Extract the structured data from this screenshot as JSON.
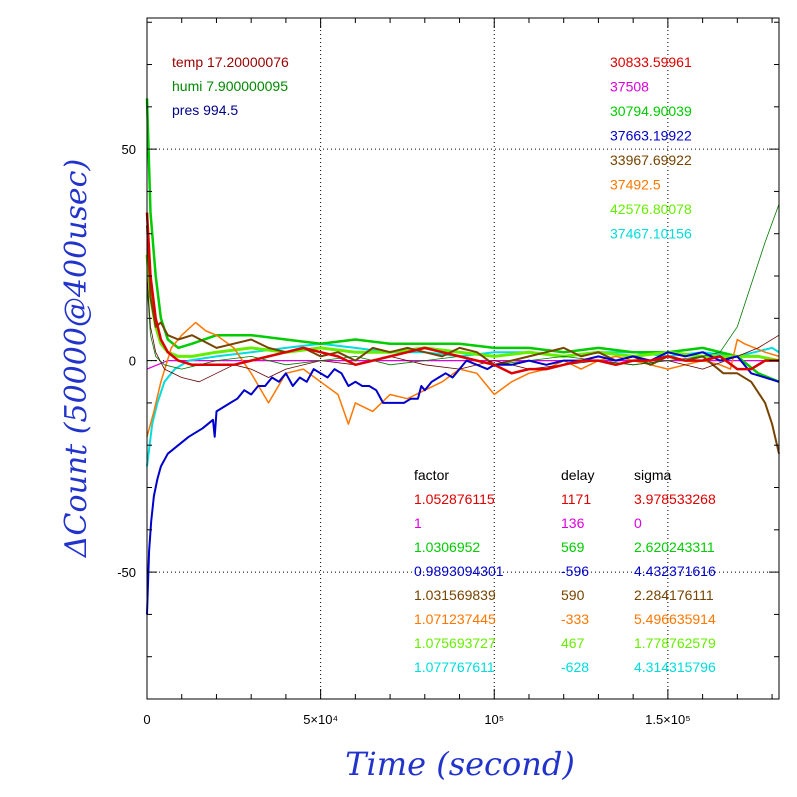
{
  "chart_data": {
    "type": "line",
    "xlabel": "Time (second)",
    "ylabel": "ΔCount (50000@400usec)",
    "xlim": [
      0,
      182000
    ],
    "ylim": [
      -80,
      81
    ],
    "xticks": [
      {
        "value": 0,
        "label": "0"
      },
      {
        "value": 50000,
        "label": "5×10⁴"
      },
      {
        "value": 100000,
        "label": "10⁵"
      },
      {
        "value": 150000,
        "label": "1.5×10⁵"
      }
    ],
    "yticks": [
      {
        "value": -50,
        "label": "-50"
      },
      {
        "value": 0,
        "label": "0"
      },
      {
        "value": 50,
        "label": "50"
      }
    ],
    "grid": true,
    "env": [
      {
        "text": "temp 17.20000076",
        "color": "#990000"
      },
      {
        "text": "humi 7.900000095",
        "color": "#008800"
      },
      {
        "text": "pres 994.5",
        "color": "#000088"
      }
    ],
    "means": [
      {
        "text": "30833.59961",
        "color": "#dd0000"
      },
      {
        "text": "37508",
        "color": "#dd00dd"
      },
      {
        "text": "30794.90039",
        "color": "#00cc00"
      },
      {
        "text": "37663.19922",
        "color": "#0000cc"
      },
      {
        "text": "33967.69922",
        "color": "#774400"
      },
      {
        "text": "37492.5",
        "color": "#ff7700"
      },
      {
        "text": "42576.80078",
        "color": "#66ee00"
      },
      {
        "text": "37467.10156",
        "color": "#00dddd"
      }
    ],
    "table": {
      "headers": [
        "factor",
        "delay",
        "sigma"
      ],
      "rows": [
        {
          "factor": "1.052876115",
          "delay": "1171",
          "sigma": "3.978533268",
          "color": "#dd0000"
        },
        {
          "factor": "1",
          "delay": "136",
          "sigma": "0",
          "color": "#dd00dd"
        },
        {
          "factor": "1.0306952",
          "delay": "569",
          "sigma": "2.620243311",
          "color": "#00cc00"
        },
        {
          "factor": "0.9893094301",
          "delay": "-596",
          "sigma": "4.432371616",
          "color": "#0000cc"
        },
        {
          "factor": "1.031569839",
          "delay": "590",
          "sigma": "2.284176111",
          "color": "#774400"
        },
        {
          "factor": "1.071237445",
          "delay": "-333",
          "sigma": "5.496635914",
          "color": "#ff7700"
        },
        {
          "factor": "1.075693727",
          "delay": "467",
          "sigma": "1.778762579",
          "color": "#66ee00"
        },
        {
          "factor": "1.077767611",
          "delay": "-628",
          "sigma": "4.314315796",
          "color": "#00dddd"
        }
      ]
    },
    "series": [
      {
        "color": "#dd00dd",
        "width": 1.2,
        "x": [
          0,
          3000,
          6000,
          20000,
          60000,
          100000,
          140000,
          182000
        ],
        "y": [
          -2,
          -1,
          0,
          0,
          0,
          0,
          0,
          0
        ]
      },
      {
        "color": "#00dddd",
        "width": 2,
        "x": [
          0,
          1500,
          3000,
          5000,
          8000,
          12000,
          20000,
          30000,
          40000,
          50000,
          60000,
          70000,
          80000,
          90000,
          100000,
          110000,
          120000,
          130000,
          140000,
          150000,
          160000,
          170000,
          175000,
          180000,
          182000
        ],
        "y": [
          -25,
          -15,
          -10,
          -5,
          -2,
          0,
          1,
          2,
          3,
          4,
          3,
          2,
          2,
          1,
          2,
          2,
          1,
          2,
          2,
          1,
          2,
          1,
          2,
          3,
          2
        ]
      },
      {
        "color": "#00cc00",
        "width": 2.5,
        "x": [
          0,
          1000,
          2500,
          4000,
          6000,
          9000,
          13000,
          20000,
          30000,
          40000,
          50000,
          60000,
          70000,
          80000,
          90000,
          100000,
          110000,
          120000,
          130000,
          140000,
          150000,
          160000,
          170000,
          176000,
          182000
        ],
        "y": [
          62,
          35,
          20,
          10,
          5,
          3,
          4,
          6,
          6,
          5,
          4,
          5,
          4,
          4,
          4,
          3,
          3,
          2,
          3,
          2,
          2,
          3,
          1,
          -3,
          -5
        ]
      },
      {
        "color": "#66ee00",
        "width": 3,
        "x": [
          0,
          1000,
          2500,
          4000,
          6000,
          9000,
          13000,
          20000,
          30000,
          40000,
          50000,
          60000,
          70000,
          80000,
          90000,
          100000,
          110000,
          120000,
          130000,
          140000,
          150000,
          160000,
          170000,
          176000,
          182000
        ],
        "y": [
          25,
          15,
          8,
          4,
          2,
          1,
          1,
          2,
          3,
          2,
          3,
          2,
          2,
          3,
          2,
          1,
          2,
          1,
          2,
          1,
          2,
          1,
          1,
          1,
          0
        ]
      },
      {
        "color": "#ff7700",
        "width": 1.5,
        "x": [
          0,
          2000,
          4000,
          7000,
          10000,
          14000,
          17000,
          20000,
          25000,
          30000,
          35000,
          40000,
          45000,
          50000,
          55000,
          58000,
          60000,
          65000,
          70000,
          75000,
          80000,
          85000,
          90000,
          95000,
          100000,
          105000,
          110000,
          115000,
          120000,
          125000,
          130000,
          135000,
          140000,
          145000,
          150000,
          155000,
          160000,
          165000,
          168000,
          170000,
          172000,
          175000,
          178000,
          182000
        ],
        "y": [
          -18,
          -12,
          -5,
          3,
          6,
          9,
          7,
          6,
          3,
          -3,
          -10,
          -3,
          -2,
          -5,
          -8,
          -15,
          -10,
          -12,
          -8,
          -9,
          -7,
          -5,
          -2,
          -3,
          -8,
          -5,
          -3,
          -2,
          0,
          -2,
          0,
          1,
          0,
          -1,
          -2,
          -1,
          0,
          -1,
          -2,
          5,
          4,
          3,
          2,
          1
        ]
      },
      {
        "color": "#774400",
        "width": 2,
        "x": [
          0,
          1000,
          2500,
          4000,
          6000,
          9000,
          13000,
          20000,
          25000,
          30000,
          35000,
          40000,
          45000,
          50000,
          55000,
          60000,
          65000,
          70000,
          75000,
          80000,
          85000,
          90000,
          95000,
          100000,
          105000,
          110000,
          115000,
          120000,
          125000,
          130000,
          135000,
          140000,
          145000,
          150000,
          155000,
          160000,
          163000,
          166000,
          170000,
          174000,
          178000,
          180000,
          182000
        ],
        "y": [
          32,
          15,
          8,
          9,
          6,
          5,
          6,
          3,
          4,
          5,
          3,
          2,
          3,
          1,
          2,
          0,
          3,
          2,
          3,
          2,
          1,
          3,
          2,
          -1,
          0,
          1,
          2,
          3,
          1,
          2,
          0,
          1,
          -1,
          1,
          0,
          1,
          -1,
          -3,
          -3,
          -5,
          -10,
          -15,
          -22
        ]
      },
      {
        "color": "#660000",
        "width": 0.8,
        "x": [
          0,
          1000,
          2500,
          5000,
          10000,
          15000,
          20000,
          25000,
          30000,
          35000,
          40000,
          50000,
          60000,
          70000,
          80000,
          90000,
          100000,
          110000,
          120000,
          130000,
          140000,
          150000,
          160000,
          170000,
          176000,
          182000
        ],
        "y": [
          20,
          8,
          2,
          -2,
          -4,
          -5,
          -3,
          -1,
          -2,
          -4,
          -2,
          0,
          -1,
          1,
          -1,
          -2,
          0,
          -2,
          -1,
          0,
          -1,
          0,
          -2,
          1,
          3,
          6
        ]
      },
      {
        "color": "#007700",
        "width": 0.8,
        "x": [
          0,
          1000,
          2500,
          5000,
          10000,
          15000,
          20000,
          30000,
          40000,
          50000,
          60000,
          70000,
          80000,
          90000,
          100000,
          110000,
          120000,
          130000,
          140000,
          150000,
          160000,
          165000,
          170000,
          174000,
          178000,
          182000
        ],
        "y": [
          18,
          6,
          1,
          -1,
          -2,
          -1,
          0,
          1,
          -1,
          0,
          1,
          -1,
          0,
          1,
          -1,
          0,
          1,
          0,
          -1,
          0,
          1,
          2,
          8,
          18,
          28,
          37
        ]
      },
      {
        "color": "#0000cc",
        "width": 2,
        "x": [
          0,
          600,
          1200,
          2000,
          3000,
          4000,
          6000,
          9000,
          12000,
          16000,
          19000,
          19500,
          20000,
          22000,
          24000,
          26000,
          28000,
          30000,
          32000,
          34000,
          36000,
          38000,
          40000,
          42000,
          44000,
          46000,
          48000,
          50000,
          52000,
          54000,
          56000,
          58000,
          60000,
          62000,
          64000,
          66000,
          68000,
          70000,
          72000,
          74000,
          76000,
          78000,
          79000,
          80000,
          82000,
          84000,
          86000,
          88000,
          90000,
          92000,
          95000,
          98000,
          100000,
          105000,
          110000,
          115000,
          120000,
          125000,
          130000,
          135000,
          140000,
          145000,
          150000,
          155000,
          160000,
          165000,
          170000,
          174000,
          178000,
          182000
        ],
        "y": [
          -60,
          -45,
          -38,
          -32,
          -28,
          -25,
          -22,
          -20,
          -18,
          -16,
          -14,
          -18,
          -12,
          -11,
          -10,
          -9,
          -7,
          -8,
          -6,
          -6,
          -4,
          -5,
          -3,
          -6,
          -4,
          -5,
          -2,
          -3,
          -4,
          -2,
          -3,
          -6,
          -5,
          -6,
          -6,
          -7,
          -10,
          -10,
          -10,
          -10,
          -9,
          -9,
          -6,
          -7,
          -5,
          -4,
          -3,
          -4,
          -2,
          0,
          -1,
          -2,
          -1,
          -1,
          0,
          -1,
          0,
          0,
          1,
          0,
          1,
          0,
          2,
          1,
          2,
          0,
          1,
          -3,
          -4,
          -5
        ]
      },
      {
        "color": "#dd0000",
        "width": 2.5,
        "x": [
          0,
          1000,
          2500,
          4000,
          6000,
          9000,
          13000,
          20000,
          25000,
          30000,
          35000,
          40000,
          45000,
          50000,
          55000,
          60000,
          65000,
          70000,
          75000,
          80000,
          85000,
          90000,
          95000,
          100000,
          105000,
          110000,
          115000,
          120000,
          125000,
          130000,
          135000,
          140000,
          145000,
          150000,
          155000,
          160000,
          165000,
          170000,
          174000,
          178000,
          182000
        ],
        "y": [
          35,
          20,
          10,
          5,
          2,
          0,
          -1,
          -1,
          -1,
          0,
          1,
          2,
          3,
          2,
          1,
          -1,
          0,
          1,
          2,
          3,
          2,
          1,
          0,
          -1,
          -3,
          -2,
          -2,
          -1,
          0,
          0,
          -1,
          0,
          0,
          1,
          0,
          0,
          1,
          -2,
          -2,
          0,
          0
        ]
      }
    ]
  }
}
